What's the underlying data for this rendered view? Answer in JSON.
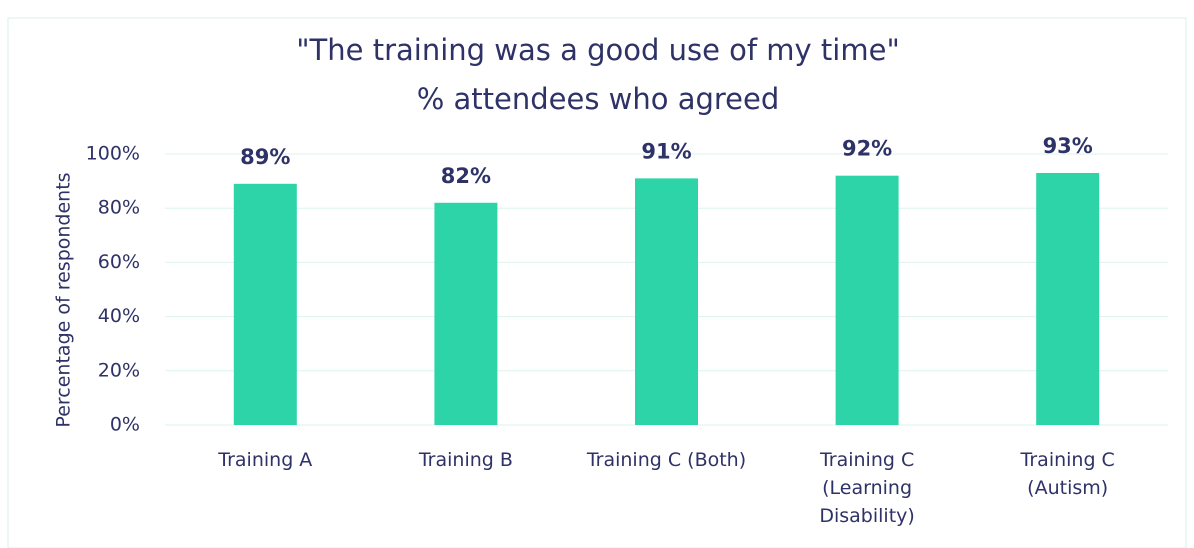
{
  "chart_data": {
    "type": "bar",
    "title": "\"The training was a good use of my time\"",
    "subtitle": "% attendees who agreed",
    "y_label": "Percentage of respondents",
    "categories": [
      "Training A",
      "Training B",
      "Training C (Both)",
      "Training C\n(Learning\nDisability)",
      "Training C\n(Autism)"
    ],
    "values": [
      89,
      82,
      91,
      92,
      93
    ],
    "value_labels": [
      "89%",
      "82%",
      "91%",
      "92%",
      "93%"
    ],
    "color": "#2dd4a8",
    "ylim": [
      0,
      100
    ],
    "yticks": [
      {
        "value": 0,
        "label": "0%"
      },
      {
        "value": 20,
        "label": "20%"
      },
      {
        "value": 40,
        "label": "40%"
      },
      {
        "value": 60,
        "label": "60%"
      },
      {
        "value": 80,
        "label": "80%"
      },
      {
        "value": 100,
        "label": "100%"
      }
    ],
    "grid": true
  }
}
